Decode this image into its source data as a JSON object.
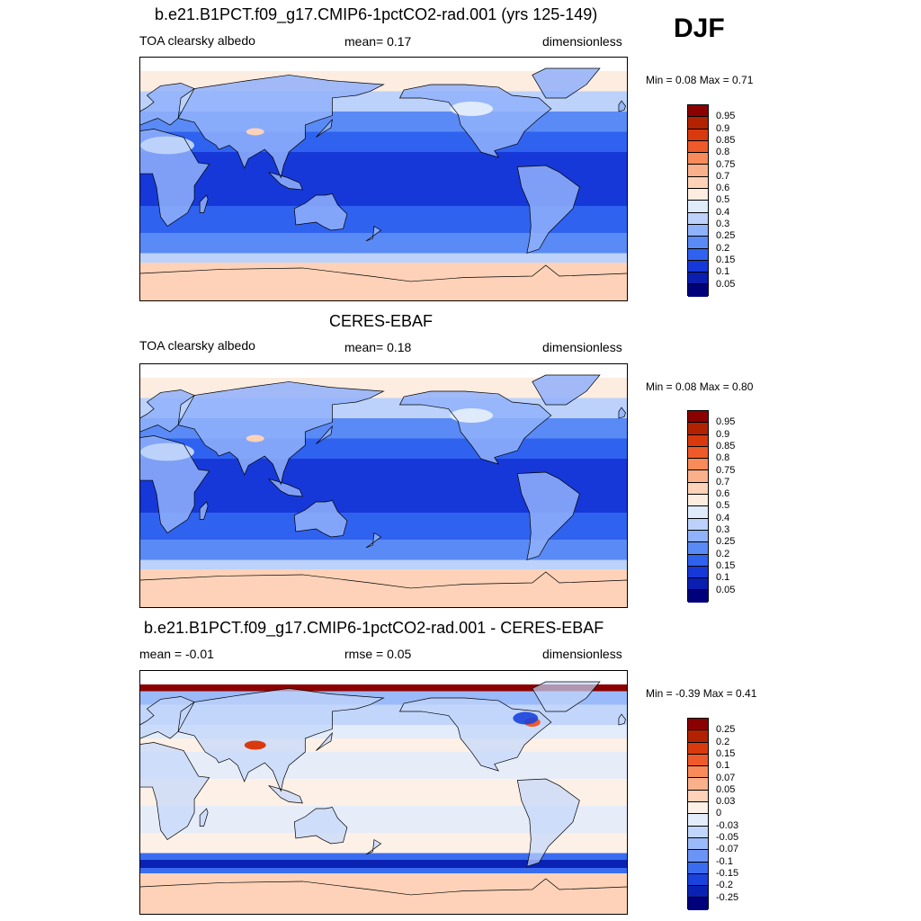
{
  "season": "DJF",
  "panels": [
    {
      "id": "model",
      "title": "b.e21.B1PCT.f09_g17.CMIP6-1pctCO2-rad.001 (yrs 125-149)",
      "left_label": "TOA clearsky albedo",
      "center_label": "mean=   0.17",
      "right_label": "dimensionless",
      "minmax": "Min =    0.08 Max =    0.71",
      "scale": "abs",
      "palette": "model"
    },
    {
      "id": "obs",
      "title": "CERES-EBAF",
      "left_label": "TOA clearsky albedo",
      "center_label": "mean=   0.18",
      "right_label": "dimensionless",
      "minmax": "Min =    0.08 Max =    0.80",
      "scale": "abs",
      "palette": "obs"
    },
    {
      "id": "diff",
      "title": "b.e21.B1PCT.f09_g17.CMIP6-1pctCO2-rad.001 - CERES-EBAF",
      "left_label": "mean =  -0.01",
      "center_label": "rmse =    0.05",
      "right_label": "dimensionless",
      "minmax": "Min =  -0.39 Max =    0.41",
      "scale": "diff",
      "palette": "diff"
    }
  ],
  "colorbars": {
    "abs": {
      "labels": [
        "0.95",
        "0.9",
        "0.85",
        "0.8",
        "0.75",
        "0.7",
        "0.6",
        "0.5",
        "0.4",
        "0.3",
        "0.25",
        "0.2",
        "0.15",
        "0.1",
        "0.05"
      ],
      "colors": [
        "#8b0000",
        "#b22200",
        "#d83a0e",
        "#ef5a2a",
        "#f98a5a",
        "#fbb08c",
        "#fdd2b8",
        "#fdece0",
        "#dfeafb",
        "#bcd2fb",
        "#90b2fa",
        "#5a8af5",
        "#2f62ef",
        "#1638d8",
        "#0a1eb0",
        "#00007a"
      ]
    },
    "diff": {
      "labels": [
        "0.25",
        "0.2",
        "0.15",
        "0.1",
        "0.07",
        "0.05",
        "0.03",
        "0",
        "-0.03",
        "-0.05",
        "-0.07",
        "-0.1",
        "-0.15",
        "-0.2",
        "-0.25"
      ],
      "colors": [
        "#8b0000",
        "#b22200",
        "#d83a0e",
        "#ef5a2a",
        "#f98a5a",
        "#fbb08c",
        "#fdd2b8",
        "#fdf0e6",
        "#e2ecfb",
        "#c2d6fb",
        "#9bbaf9",
        "#6a94f5",
        "#3a6cf0",
        "#1a42dc",
        "#0a22b4",
        "#00007a"
      ]
    }
  }
}
